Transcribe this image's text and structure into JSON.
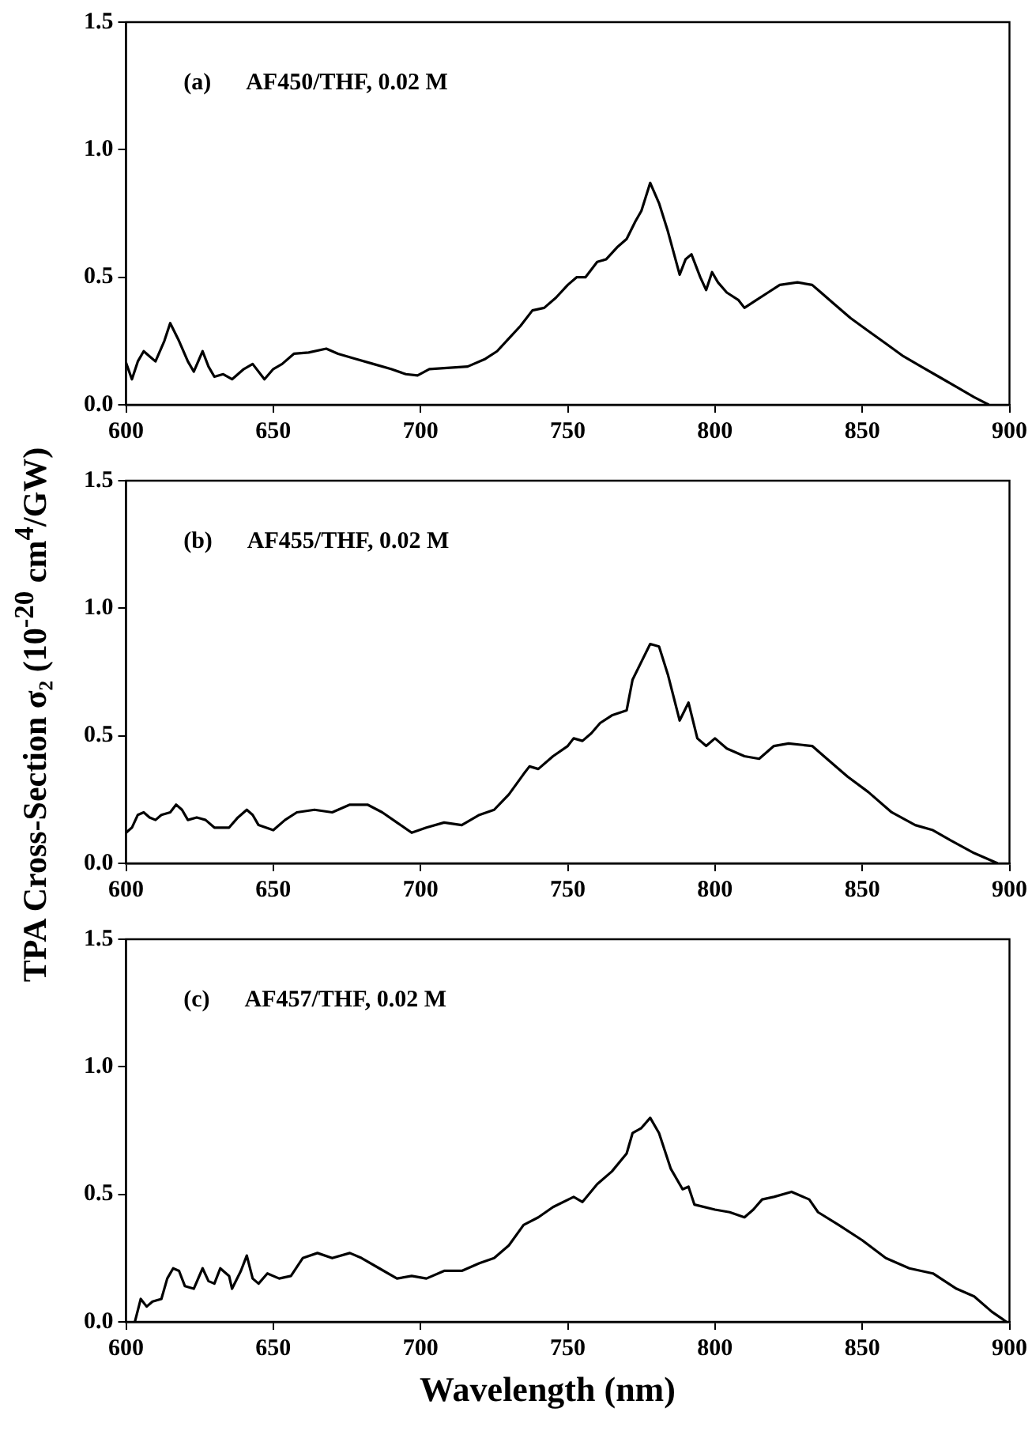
{
  "chart_data": [
    {
      "type": "line",
      "annotations": [
        "(a)",
        "AF450/THF, 0.02 M"
      ],
      "xlim": [
        600,
        900
      ],
      "xticks": [
        600,
        650,
        700,
        750,
        800,
        850,
        900
      ],
      "ylim": [
        0,
        1.5
      ],
      "yticks": [
        {
          "value": 0,
          "label": "0.0"
        },
        {
          "value": 0.5,
          "label": "0.5"
        },
        {
          "value": 1,
          "label": "1.0"
        },
        {
          "value": 1.5,
          "label": "1.5"
        }
      ],
      "grid": false,
      "marker": "none",
      "x": [
        600,
        602,
        604,
        606,
        608,
        610,
        613,
        615,
        618,
        621,
        623,
        626,
        628,
        630,
        633,
        636,
        640,
        643,
        647,
        650,
        653,
        657,
        662,
        668,
        672,
        678,
        684,
        690,
        695,
        699,
        703,
        710,
        716,
        722,
        726,
        730,
        734,
        738,
        742,
        746,
        750,
        753,
        756,
        760,
        763,
        767,
        770,
        773,
        775,
        778,
        781,
        784,
        788,
        790,
        792,
        795,
        797,
        799,
        801,
        804,
        808,
        810,
        814,
        818,
        822,
        828,
        833,
        836,
        840,
        846,
        852,
        858,
        864,
        870,
        876,
        882,
        888,
        893
      ],
      "series": [
        {
          "color": "#000000",
          "values": [
            0.165,
            0.1,
            0.17,
            0.21,
            0.19,
            0.17,
            0.25,
            0.32,
            0.25,
            0.17,
            0.13,
            0.21,
            0.15,
            0.11,
            0.12,
            0.1,
            0.14,
            0.16,
            0.1,
            0.14,
            0.16,
            0.2,
            0.205,
            0.22,
            0.2,
            0.18,
            0.16,
            0.14,
            0.12,
            0.115,
            0.14,
            0.145,
            0.15,
            0.18,
            0.21,
            0.26,
            0.31,
            0.37,
            0.38,
            0.42,
            0.47,
            0.5,
            0.5,
            0.56,
            0.57,
            0.62,
            0.65,
            0.72,
            0.76,
            0.87,
            0.79,
            0.68,
            0.51,
            0.57,
            0.59,
            0.5,
            0.45,
            0.52,
            0.48,
            0.44,
            0.41,
            0.38,
            0.41,
            0.44,
            0.47,
            0.48,
            0.47,
            0.44,
            0.4,
            0.34,
            0.29,
            0.24,
            0.19,
            0.15,
            0.11,
            0.07,
            0.03,
            0.0
          ]
        }
      ]
    },
    {
      "type": "line",
      "annotations": [
        "(b)",
        "AF455/THF, 0.02 M"
      ],
      "ylabel": "TPA Cross-Section σ₂ (10$^{-20}$ cm$^{4}$/GW)",
      "xlim": [
        600,
        900
      ],
      "xticks": [
        600,
        650,
        700,
        750,
        800,
        850,
        900
      ],
      "ylim": [
        0,
        1.5
      ],
      "yticks": [
        {
          "value": 0,
          "label": "0.0"
        },
        {
          "value": 0.5,
          "label": "0.5"
        },
        {
          "value": 1,
          "label": "1.0"
        },
        {
          "value": 1.5,
          "label": "1.5"
        }
      ],
      "grid": false,
      "marker": "none",
      "x": [
        600,
        602,
        604,
        606,
        608,
        610,
        612,
        615,
        617,
        619,
        621,
        624,
        627,
        630,
        635,
        638,
        641,
        643,
        645,
        650,
        654,
        658,
        664,
        670,
        676,
        682,
        687,
        692,
        697,
        702,
        708,
        714,
        720,
        725,
        730,
        735,
        737,
        740,
        745,
        750,
        752,
        755,
        758,
        761,
        765,
        770,
        772,
        775,
        778,
        781,
        784,
        788,
        791,
        794,
        797,
        800,
        804,
        810,
        815,
        820,
        825,
        833,
        838,
        845,
        852,
        860,
        868,
        874,
        880,
        888,
        896
      ],
      "series": [
        {
          "color": "#000000",
          "values": [
            0.12,
            0.14,
            0.19,
            0.2,
            0.18,
            0.17,
            0.19,
            0.2,
            0.23,
            0.21,
            0.17,
            0.18,
            0.17,
            0.14,
            0.14,
            0.18,
            0.21,
            0.19,
            0.15,
            0.13,
            0.17,
            0.2,
            0.21,
            0.2,
            0.23,
            0.23,
            0.2,
            0.16,
            0.12,
            0.14,
            0.16,
            0.15,
            0.19,
            0.21,
            0.27,
            0.35,
            0.38,
            0.37,
            0.42,
            0.46,
            0.49,
            0.48,
            0.51,
            0.55,
            0.58,
            0.6,
            0.72,
            0.79,
            0.86,
            0.85,
            0.74,
            0.56,
            0.63,
            0.49,
            0.46,
            0.49,
            0.45,
            0.42,
            0.41,
            0.46,
            0.47,
            0.46,
            0.41,
            0.34,
            0.28,
            0.2,
            0.15,
            0.13,
            0.09,
            0.04,
            0.0
          ]
        }
      ]
    },
    {
      "type": "line",
      "annotations": [
        "(c)",
        "AF457/THF, 0.02 M"
      ],
      "xlabel": "Wavelength (nm)",
      "xlim": [
        600,
        900
      ],
      "xticks": [
        600,
        650,
        700,
        750,
        800,
        850,
        900
      ],
      "ylim": [
        0,
        1.5
      ],
      "yticks": [
        {
          "value": 0,
          "label": "0.0"
        },
        {
          "value": 0.5,
          "label": "0.5"
        },
        {
          "value": 1,
          "label": "1.0"
        },
        {
          "value": 1.5,
          "label": "1.5"
        }
      ],
      "grid": false,
      "marker": "none",
      "x": [
        603,
        605,
        607,
        609,
        612,
        614,
        616,
        618,
        620,
        623,
        626,
        628,
        630,
        632,
        635,
        636,
        639,
        641,
        643,
        645,
        648,
        652,
        656,
        660,
        665,
        670,
        676,
        680,
        686,
        692,
        697,
        702,
        708,
        714,
        720,
        725,
        730,
        735,
        740,
        745,
        752,
        755,
        760,
        765,
        770,
        772,
        775,
        778,
        781,
        785,
        789,
        791,
        793,
        800,
        805,
        810,
        813,
        816,
        820,
        826,
        832,
        835,
        842,
        850,
        858,
        866,
        874,
        882,
        888,
        894,
        899
      ],
      "series": [
        {
          "color": "#000000",
          "values": [
            0.0,
            0.09,
            0.06,
            0.08,
            0.09,
            0.17,
            0.21,
            0.2,
            0.14,
            0.13,
            0.21,
            0.16,
            0.15,
            0.21,
            0.18,
            0.13,
            0.2,
            0.26,
            0.17,
            0.15,
            0.19,
            0.17,
            0.18,
            0.25,
            0.27,
            0.25,
            0.27,
            0.25,
            0.21,
            0.17,
            0.18,
            0.17,
            0.2,
            0.2,
            0.23,
            0.25,
            0.3,
            0.38,
            0.41,
            0.45,
            0.49,
            0.47,
            0.54,
            0.59,
            0.66,
            0.74,
            0.76,
            0.8,
            0.74,
            0.6,
            0.52,
            0.53,
            0.46,
            0.44,
            0.43,
            0.41,
            0.44,
            0.48,
            0.49,
            0.51,
            0.48,
            0.43,
            0.38,
            0.32,
            0.25,
            0.21,
            0.19,
            0.13,
            0.1,
            0.04,
            0.0
          ]
        }
      ]
    }
  ]
}
